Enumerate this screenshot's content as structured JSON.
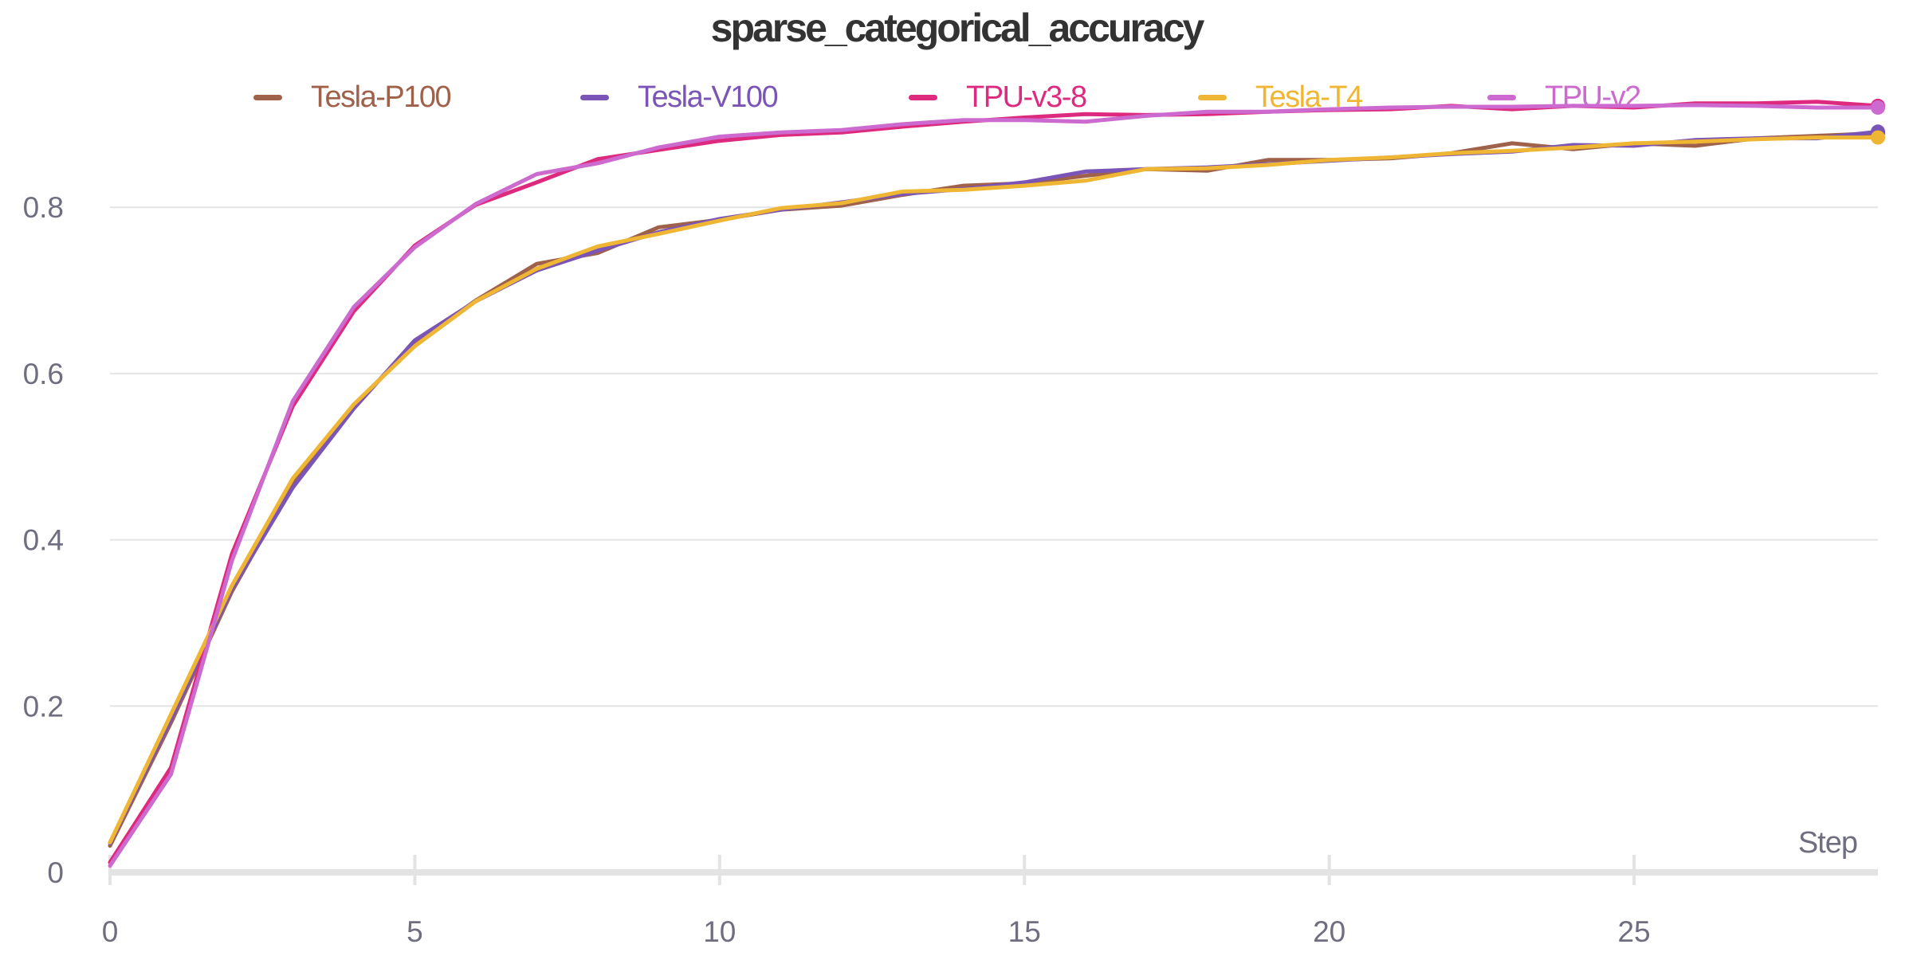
{
  "chart_data": {
    "type": "line",
    "title": "sparse_categorical_accuracy",
    "xlabel": "Step",
    "ylabel": "",
    "xlim": [
      0,
      29
    ],
    "ylim": [
      0,
      0.92
    ],
    "x_ticks": [
      0,
      5,
      10,
      15,
      20,
      25
    ],
    "y_ticks": [
      0,
      0.2,
      0.4,
      0.6,
      0.8
    ],
    "x_tick_labels": [
      "0",
      "5",
      "10",
      "15",
      "20",
      "25"
    ],
    "y_tick_labels": [
      "0",
      "0.2",
      "0.4",
      "0.6",
      "0.8"
    ],
    "grid": "horizontal",
    "legend_position": "top",
    "x": [
      0,
      1,
      2,
      3,
      4,
      5,
      6,
      7,
      8,
      9,
      10,
      11,
      12,
      13,
      14,
      15,
      16,
      17,
      18,
      19,
      20,
      21,
      22,
      23,
      24,
      25,
      26,
      27,
      28,
      29
    ],
    "series": [
      {
        "name": "Tesla-P100",
        "color": "#a0614a",
        "values": [
          0.032,
          0.18,
          0.338,
          0.468,
          0.562,
          0.635,
          0.688,
          0.732,
          0.745,
          0.776,
          0.785,
          0.797,
          0.802,
          0.815,
          0.826,
          0.829,
          0.838,
          0.846,
          0.844,
          0.857,
          0.857,
          0.859,
          0.865,
          0.877,
          0.87,
          0.877,
          0.874,
          0.883,
          0.886,
          0.889
        ]
      },
      {
        "name": "Tesla-V100",
        "color": "#7a54b6",
        "values": [
          0.035,
          0.184,
          0.341,
          0.463,
          0.558,
          0.64,
          0.687,
          0.724,
          0.748,
          0.77,
          0.786,
          0.797,
          0.806,
          0.816,
          0.822,
          0.83,
          0.843,
          0.846,
          0.848,
          0.852,
          0.856,
          0.86,
          0.864,
          0.867,
          0.875,
          0.874,
          0.881,
          0.883,
          0.883,
          0.891
        ]
      },
      {
        "name": "TPU-v3-8",
        "color": "#dd2a7f",
        "values": [
          0.012,
          0.126,
          0.383,
          0.561,
          0.675,
          0.754,
          0.803,
          0.83,
          0.858,
          0.869,
          0.88,
          0.887,
          0.89,
          0.897,
          0.903,
          0.908,
          0.912,
          0.911,
          0.912,
          0.915,
          0.917,
          0.918,
          0.922,
          0.918,
          0.922,
          0.92,
          0.925,
          0.925,
          0.927,
          0.922
        ]
      },
      {
        "name": "Tesla-T4",
        "color": "#efb634",
        "values": [
          0.036,
          0.19,
          0.345,
          0.474,
          0.563,
          0.633,
          0.687,
          0.726,
          0.753,
          0.768,
          0.784,
          0.799,
          0.805,
          0.819,
          0.821,
          0.826,
          0.832,
          0.846,
          0.847,
          0.851,
          0.857,
          0.86,
          0.865,
          0.868,
          0.872,
          0.877,
          0.879,
          0.882,
          0.884,
          0.884
        ]
      },
      {
        "name": "TPU-v2",
        "color": "#cc6ad0",
        "values": [
          0.008,
          0.118,
          0.375,
          0.567,
          0.68,
          0.752,
          0.804,
          0.84,
          0.853,
          0.872,
          0.885,
          0.89,
          0.893,
          0.9,
          0.905,
          0.905,
          0.903,
          0.91,
          0.915,
          0.915,
          0.918,
          0.92,
          0.921,
          0.921,
          0.922,
          0.922,
          0.923,
          0.922,
          0.92,
          0.92
        ]
      }
    ]
  }
}
